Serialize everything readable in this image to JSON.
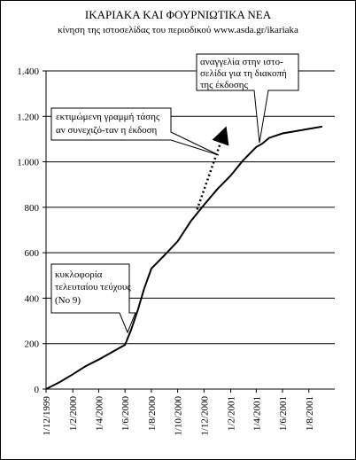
{
  "chart_data": {
    "type": "line",
    "title": "ΙΚΑΡΙΑΚΑ ΚΑΙ ΦΟΥΡΝΙΩΤΙΚΑ ΝΕΑ",
    "subtitle": "κίνηση της ιστοσελίδας του περιοδικού www.asda.gr/ikariaka",
    "xlabel": "",
    "ylabel": "",
    "ylim": [
      0,
      1400
    ],
    "yticks": [
      0,
      200,
      400,
      600,
      800,
      1000,
      1200,
      1400
    ],
    "ytick_labels": [
      "0",
      "200",
      "400",
      "600",
      "800",
      "1.000",
      "1.200",
      "1.400"
    ],
    "xticks": [
      "1/12/1999",
      "1/2/2000",
      "1/4/2000",
      "1/6/2000",
      "1/8/2000",
      "1/10/2000",
      "1/12/2000",
      "1/2/2001",
      "1/4/2001",
      "1/6/2001",
      "1/8/2001"
    ],
    "grid": "horizontal",
    "series": [
      {
        "values": [
          [
            "1/12/1999",
            0
          ],
          [
            "1/1/2000",
            30
          ],
          [
            "1/2/2000",
            65
          ],
          [
            "1/3/2000",
            100
          ],
          [
            "1/4/2000",
            130
          ],
          [
            "1/5/2000",
            162
          ],
          [
            "1/6/2000",
            195
          ],
          [
            "15/6/2000",
            260
          ],
          [
            "1/7/2000",
            350
          ],
          [
            "15/7/2000",
            440
          ],
          [
            "1/8/2000",
            530
          ],
          [
            "1/9/2000",
            590
          ],
          [
            "1/10/2000",
            650
          ],
          [
            "1/11/2000",
            740
          ],
          [
            "1/12/2000",
            810
          ],
          [
            "1/1/2001",
            880
          ],
          [
            "1/2/2001",
            940
          ],
          [
            "1/3/2001",
            1005
          ],
          [
            "1/4/2001",
            1065
          ],
          [
            "15/4/2001",
            1080
          ],
          [
            "1/5/2001",
            1105
          ],
          [
            "1/6/2001",
            1125
          ],
          [
            "1/7/2001",
            1135
          ],
          [
            "1/8/2001",
            1145
          ],
          [
            "1/9/2001",
            1155
          ]
        ]
      }
    ],
    "trend_arrow": {
      "from": [
        "15/11/2000",
        790
      ],
      "to": [
        "15/1/2001",
        1120
      ]
    },
    "annotations": [
      {
        "lines": [
          "αναγγελία στην ιστο-",
          "σελίδα για τη διακοπή",
          "της έκδοσης"
        ]
      },
      {
        "lines": [
          "εκτιμώμενη γραμμή τάσης",
          "αν συνεχιζό-ταν η έκδοση"
        ]
      },
      {
        "lines": [
          "κυκλοφορία",
          "τελευταίου τεύχους",
          "(Νο 9)"
        ]
      }
    ]
  }
}
